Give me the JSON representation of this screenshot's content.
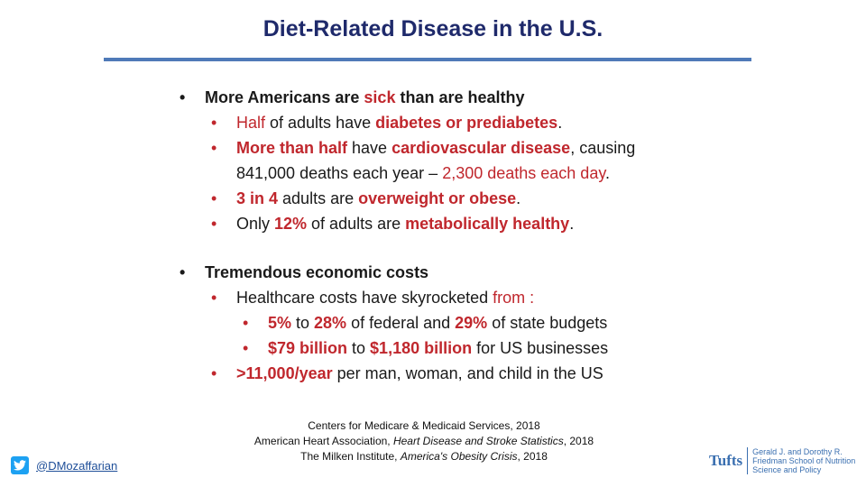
{
  "title": "Diet-Related Disease in the U.S.",
  "section1": {
    "heading_a": "More Americans are ",
    "heading_sick": "sick",
    "heading_b": " than are healthy",
    "i1": {
      "a": "Half",
      "b": " of adults have ",
      "c": "diabetes or prediabetes",
      "d": "."
    },
    "i2": {
      "a": "More than half",
      "b": " have ",
      "c": "cardiovascular disease",
      "d": ", causing",
      "e": "841,000 deaths each year – ",
      "f": "2,300 deaths each day",
      "g": "."
    },
    "i3": {
      "a": "3 in 4",
      "b": " adults are ",
      "c": "overweight or obese",
      "d": "."
    },
    "i4": {
      "a": "Only ",
      "b": "12%",
      "c": " of adults are ",
      "d": "metabolically healthy",
      "e": "."
    }
  },
  "section2": {
    "heading": "Tremendous economic costs",
    "i1": {
      "a": "Healthcare costs have skyrocketed ",
      "b": "from :"
    },
    "i1a": {
      "a": "5%",
      "b": " to ",
      "c": "28%",
      "d": " of federal and ",
      "e": "29%",
      "f": " of state budgets"
    },
    "i1b": {
      "a": "$79 billion",
      "b": " to ",
      "c": "$1,180 billion",
      "d": " for US businesses"
    },
    "i2": {
      "a": ">11,000/year",
      "b": " per man, woman, and child in the US"
    }
  },
  "references": {
    "r1": "Centers for Medicare & Medicaid Services, 2018",
    "r2a": "American Heart Association, ",
    "r2b": "Heart Disease and Stroke Statistics",
    "r2c": ", 2018",
    "r3a": "The Milken Institute, ",
    "r3b": "America's Obesity Crisis",
    "r3c": ", 2018"
  },
  "twitter_handle": "@DMozaffarian",
  "logo": {
    "word": "Tufts",
    "school": "Gerald J. and Dorothy R. Friedman School of Nutrition Science and Policy"
  },
  "icons": {
    "social": "twitter-bird-icon"
  },
  "colors": {
    "title": "#1f2a6b",
    "rule": "#4f7ab8",
    "highlight": "#c0272d"
  }
}
